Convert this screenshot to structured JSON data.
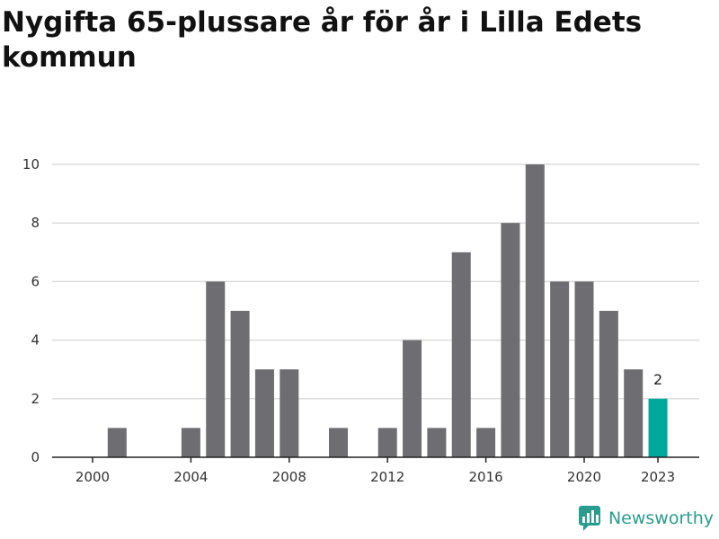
{
  "title": "Nygifta 65-plussare år för år i Lilla Edets kommun",
  "brand": {
    "name": "Newsworthy",
    "icon": "newsworthy-logo-icon",
    "color": "#2a9d8f"
  },
  "chart_data": {
    "type": "bar",
    "title": "Nygifta 65-plussare år för år i Lilla Edets kommun",
    "xlabel": "",
    "ylabel": "",
    "categories": [
      2000,
      2001,
      2002,
      2003,
      2004,
      2005,
      2006,
      2007,
      2008,
      2009,
      2010,
      2011,
      2012,
      2013,
      2014,
      2015,
      2016,
      2017,
      2018,
      2019,
      2020,
      2021,
      2022,
      2023
    ],
    "values": [
      0,
      1,
      0,
      0,
      1,
      6,
      5,
      3,
      3,
      0,
      1,
      0,
      1,
      4,
      1,
      7,
      1,
      8,
      10,
      6,
      6,
      5,
      3,
      2
    ],
    "ylim": [
      0,
      10
    ],
    "yticks": [
      0,
      2,
      4,
      6,
      8,
      10
    ],
    "xticks": [
      2000,
      2004,
      2008,
      2012,
      2016,
      2020,
      2023
    ],
    "grid": true,
    "bar_color": "#6e6d72",
    "highlight": {
      "category": 2023,
      "color": "#00a79d",
      "label": "2"
    }
  }
}
